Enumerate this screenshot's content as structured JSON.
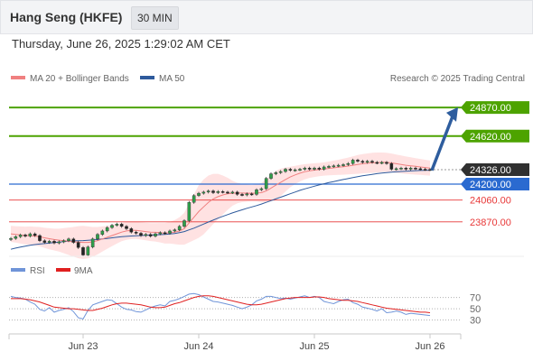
{
  "header": {
    "title": "Hang Seng (HKFE)",
    "interval": "30 MIN"
  },
  "timestamp": "Thursday, June 26, 2025 1:29:02 AM CET",
  "attribution": "Research © 2025 Trading Central",
  "colors": {
    "resistance": "#4da300",
    "support": "#e83838",
    "current": "#303030",
    "pivot": "#2a6ad0",
    "ma50": "#2e5a9c",
    "ma20": "#f08080",
    "bollinger_fill": "#ffd8d8",
    "rsi": "#6f94d8",
    "rsi_ma": "#e02020",
    "arrow": "#2e5d9e"
  },
  "chart_data": {
    "type": "line",
    "title": "Hang Seng (HKFE)",
    "interval": "30 MIN",
    "legend": [
      {
        "name": "MA 20 + Bollinger Bands",
        "color": "#f08080"
      },
      {
        "name": "MA 50",
        "color": "#2e5a9c"
      }
    ],
    "x_ticks": [
      "Jun 23",
      "Jun 24",
      "Jun 25",
      "Jun 26"
    ],
    "ylim": [
      23600,
      25060
    ],
    "current_price": "24326.00",
    "levels": [
      {
        "label": "24870.00",
        "value": 24870,
        "kind": "resistance"
      },
      {
        "label": "24620.00",
        "value": 24620,
        "kind": "resistance"
      },
      {
        "label": "24200.00",
        "value": 24200,
        "kind": "pivot"
      },
      {
        "label": "24060.00",
        "value": 24060,
        "kind": "support"
      },
      {
        "label": "23870.00",
        "value": 23870,
        "kind": "support"
      }
    ],
    "price": [
      23725,
      23740,
      23755,
      23745,
      23765,
      23750,
      23705,
      23690,
      23700,
      23685,
      23695,
      23705,
      23720,
      23690,
      23645,
      23580,
      23650,
      23720,
      23760,
      23790,
      23820,
      23840,
      23850,
      23830,
      23810,
      23780,
      23770,
      23750,
      23760,
      23745,
      23765,
      23775,
      23770,
      23790,
      23800,
      23830,
      23880,
      24040,
      24100,
      24120,
      24130,
      24140,
      24125,
      24135,
      24130,
      24125,
      24130,
      24110,
      24105,
      24115,
      24110,
      24150,
      24160,
      24250,
      24290,
      24300,
      24310,
      24330,
      24320,
      24325,
      24330,
      24340,
      24330,
      24340,
      24330,
      24350,
      24355,
      24360,
      24365,
      24370,
      24380,
      24410,
      24400,
      24390,
      24400,
      24390,
      24385,
      24390,
      24380,
      24330,
      24335,
      24340,
      24330,
      24340,
      24335,
      24330,
      24328,
      24326
    ],
    "ma20": [
      23765,
      23760,
      23755,
      23750,
      23750,
      23745,
      23740,
      23730,
      23722,
      23715,
      23710,
      23705,
      23700,
      23695,
      23692,
      23690,
      23690,
      23695,
      23705,
      23720,
      23735,
      23750,
      23765,
      23780,
      23790,
      23795,
      23795,
      23790,
      23785,
      23780,
      23778,
      23775,
      23770,
      23775,
      23780,
      23790,
      23810,
      23860,
      23910,
      23960,
      24000,
      24040,
      24070,
      24090,
      24105,
      24115,
      24120,
      24122,
      24122,
      24121,
      24120,
      24122,
      24125,
      24140,
      24165,
      24190,
      24215,
      24240,
      24262,
      24280,
      24295,
      24308,
      24316,
      24322,
      24327,
      24332,
      24337,
      24342,
      24347,
      24352,
      24358,
      24365,
      24372,
      24378,
      24382,
      24386,
      24388,
      24390,
      24390,
      24385,
      24378,
      24372,
      24365,
      24360,
      24355,
      24350,
      24345,
      24340
    ],
    "ma50": [
      23630,
      23640,
      23650,
      23658,
      23665,
      23671,
      23676,
      23680,
      23684,
      23688,
      23692,
      23696,
      23700,
      23703,
      23705,
      23706,
      23708,
      23711,
      23715,
      23720,
      23725,
      23730,
      23735,
      23740,
      23743,
      23746,
      23748,
      23750,
      23752,
      23754,
      23756,
      23758,
      23760,
      23763,
      23768,
      23775,
      23785,
      23800,
      23815,
      23832,
      23850,
      23868,
      23885,
      23902,
      23918,
      23933,
      23948,
      23962,
      23975,
      23988,
      24000,
      24012,
      24025,
      24040,
      24055,
      24070,
      24085,
      24100,
      24115,
      24130,
      24145,
      24158,
      24170,
      24182,
      24193,
      24203,
      24213,
      24222,
      24231,
      24240,
      24248,
      24257,
      24265,
      24272,
      24279,
      24285,
      24291,
      24296,
      24300,
      24304,
      24307,
      24310,
      24313,
      24315,
      24317,
      24319,
      24320,
      24321
    ],
    "bb_width": [
      70,
      72,
      75,
      78,
      80,
      82,
      85,
      88,
      92,
      95,
      100,
      110,
      120,
      130,
      140,
      145,
      140,
      130,
      120,
      110,
      100,
      92,
      85,
      80,
      78,
      76,
      75,
      75,
      76,
      78,
      80,
      85,
      90,
      95,
      105,
      120,
      140,
      170,
      200,
      230,
      240,
      235,
      220,
      200,
      170,
      140,
      110,
      90,
      80,
      75,
      72,
      75,
      85,
      100,
      115,
      125,
      120,
      105,
      90,
      80,
      72,
      66,
      62,
      60,
      58,
      58,
      60,
      63,
      66,
      70,
      74,
      78,
      82,
      84,
      86,
      88,
      88,
      86,
      84,
      82,
      80,
      78,
      76,
      74,
      72,
      70,
      68,
      66
    ],
    "rsi": {
      "name": "RSI",
      "ma_name": "9MA",
      "ticks": [
        70,
        50,
        30
      ],
      "ylim": [
        15,
        95
      ],
      "values": [
        72,
        70,
        69,
        67,
        62,
        58,
        49,
        46,
        52,
        44,
        47,
        49,
        52,
        45,
        34,
        32,
        47,
        57,
        60,
        63,
        66,
        65,
        59,
        53,
        49,
        48,
        45,
        44,
        48,
        52,
        55,
        57,
        55,
        63,
        65,
        68,
        72,
        76,
        77,
        75,
        71,
        67,
        63,
        62,
        60,
        58,
        56,
        53,
        50,
        53,
        57,
        64,
        67,
        72,
        72,
        70,
        68,
        69,
        67,
        69,
        71,
        73,
        70,
        72,
        70,
        63,
        61,
        59,
        63,
        66,
        67,
        61,
        58,
        53,
        51,
        49,
        46,
        50,
        43,
        44,
        46,
        44,
        40,
        42,
        41,
        40,
        39,
        38
      ],
      "ma": [
        68,
        68,
        68,
        67,
        66,
        64,
        62,
        59,
        56,
        53,
        52,
        51,
        50,
        50,
        49,
        48,
        47,
        47,
        49,
        51,
        54,
        57,
        59,
        60,
        60,
        59,
        58,
        57,
        55,
        53,
        52,
        52,
        53,
        56,
        59,
        61,
        64,
        67,
        70,
        72,
        73,
        73,
        72,
        70,
        68,
        66,
        64,
        62,
        60,
        58,
        57,
        57,
        58,
        60,
        62,
        64,
        66,
        68,
        69,
        70,
        70,
        70,
        70,
        71,
        71,
        70,
        68,
        67,
        66,
        65,
        65,
        64,
        63,
        61,
        59,
        57,
        55,
        53,
        51,
        50,
        49,
        48,
        47,
        46,
        45,
        44,
        44,
        43
      ]
    }
  }
}
